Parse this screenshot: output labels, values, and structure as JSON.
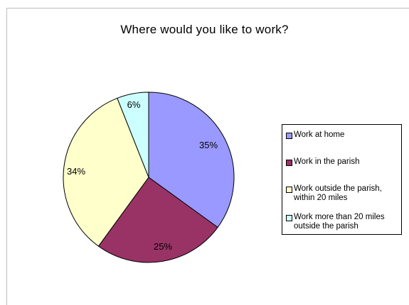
{
  "chart_data": {
    "type": "pie",
    "title": "Where would you like to work?",
    "slices": [
      {
        "label": "Work at home",
        "value": 35,
        "data_label": "35%",
        "color": "#9999ff"
      },
      {
        "label": "Work in the parish",
        "value": 25,
        "data_label": "25%",
        "color": "#993366"
      },
      {
        "label": "Work outside the parish, within 20 miles",
        "value": 34,
        "data_label": "34%",
        "color": "#ffffcc"
      },
      {
        "label": "Work more than 20 miles outside the parish",
        "value": 6,
        "data_label": "6%",
        "color": "#ccffff"
      }
    ],
    "legend": {
      "position": "right",
      "items": [
        "Work at home",
        "Work in the parish",
        "Work outside the parish, within 20 miles",
        "Work more than 20 miles outside the parish"
      ]
    },
    "start_angle": "12 o'clock",
    "direction": "clockwise"
  }
}
